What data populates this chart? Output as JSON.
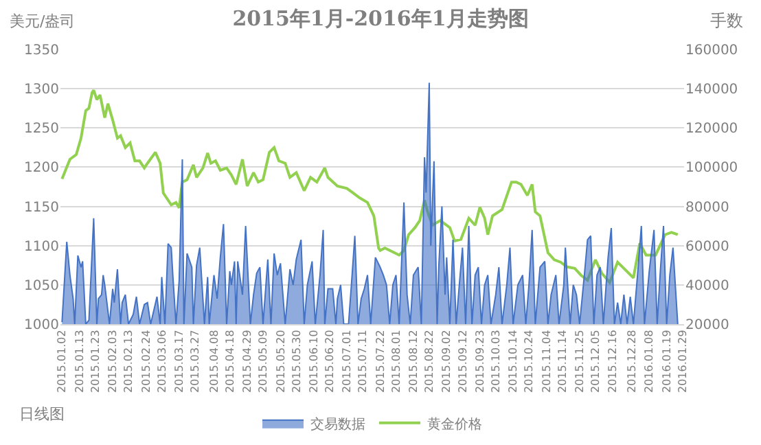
{
  "chart_data": {
    "type": "line",
    "title": "2015年1月-2016年1月走势图",
    "ylabel": "美元/盎司",
    "y2label": "手数",
    "annotations": [
      "日线图"
    ],
    "xlim": [
      "2015-01-01",
      "2016-01-30"
    ],
    "xticks": [
      {
        "value": "2015-01-02",
        "label": "2015.01.02"
      },
      {
        "value": "2015-01-13",
        "label": "2015.01.13"
      },
      {
        "value": "2015-01-23",
        "label": "2015.01.23"
      },
      {
        "value": "2015-02-03",
        "label": "2015.02.03"
      },
      {
        "value": "2015-02-13",
        "label": "2015.02.13"
      },
      {
        "value": "2015-02-24",
        "label": "2015.02.24"
      },
      {
        "value": "2015-03-06",
        "label": "2015.03.06"
      },
      {
        "value": "2015-03-17",
        "label": "2015.03.17"
      },
      {
        "value": "2015-03-27",
        "label": "2015.03.27"
      },
      {
        "value": "2015-04-08",
        "label": "2015.04.08"
      },
      {
        "value": "2015-04-18",
        "label": "2015.04.18"
      },
      {
        "value": "2015-04-29",
        "label": "2015.04.29"
      },
      {
        "value": "2015-05-09",
        "label": "2015.05.09"
      },
      {
        "value": "2015-05-20",
        "label": "2015.05.20"
      },
      {
        "value": "2015-05-30",
        "label": "2015.05.30"
      },
      {
        "value": "2015-06-10",
        "label": "2015.06.10"
      },
      {
        "value": "2015-06-20",
        "label": "2015.06.20"
      },
      {
        "value": "2015-07-01",
        "label": "2015.07.01"
      },
      {
        "value": "2015-07-11",
        "label": "2015.07.11"
      },
      {
        "value": "2015-07-22",
        "label": "2015.07.22"
      },
      {
        "value": "2015-08-01",
        "label": "2015.08.01"
      },
      {
        "value": "2015-08-12",
        "label": "2015.08.12"
      },
      {
        "value": "2015-08-22",
        "label": "2015.08.22"
      },
      {
        "value": "2015-09-02",
        "label": "2015.09.02"
      },
      {
        "value": "2015-09-12",
        "label": "2015.09.12"
      },
      {
        "value": "2015-09-23",
        "label": "2015.09.23"
      },
      {
        "value": "2015-10-03",
        "label": "2015.10.03"
      },
      {
        "value": "2015-10-14",
        "label": "2015.10.14"
      },
      {
        "value": "2015-10-24",
        "label": "2015.10.24"
      },
      {
        "value": "2015-11-04",
        "label": "2015.11.04"
      },
      {
        "value": "2015-11-14",
        "label": "2015.11.14"
      },
      {
        "value": "2015-11-25",
        "label": "2015.11.25"
      },
      {
        "value": "2015-12-05",
        "label": "2015.12.05"
      },
      {
        "value": "2015-12-16",
        "label": "2015.12.16"
      },
      {
        "value": "2015-12-28",
        "label": "2015.12.28"
      },
      {
        "value": "2016-01-08",
        "label": "2016.01.08"
      },
      {
        "value": "2016-01-19",
        "label": "2016.01.19"
      },
      {
        "value": "2016-01-29",
        "label": "2016.01.29"
      }
    ],
    "ylim": [
      1000,
      1350
    ],
    "yticks": [
      1000,
      1050,
      1100,
      1150,
      1200,
      1250,
      1300,
      1350
    ],
    "y2lim": [
      20000,
      160000
    ],
    "y2ticks": [
      20000,
      40000,
      60000,
      80000,
      100000,
      120000,
      140000,
      160000
    ],
    "grid": "y",
    "legend": "bottom",
    "series": [
      {
        "name": "交易数据",
        "type": "area",
        "axis": "y2",
        "color": "#4472c4",
        "x": [
          "2015-01-02",
          "2015-01-05",
          "2015-01-07",
          "2015-01-09",
          "2015-01-10",
          "2015-01-12",
          "2015-01-14",
          "2015-01-15",
          "2015-01-17",
          "2015-01-19",
          "2015-01-22",
          "2015-01-24",
          "2015-01-25",
          "2015-01-27",
          "2015-01-28",
          "2015-01-29",
          "2015-02-01",
          "2015-02-03",
          "2015-02-04",
          "2015-02-06",
          "2015-02-08",
          "2015-02-09",
          "2015-02-11",
          "2015-02-13",
          "2015-02-16",
          "2015-02-18",
          "2015-02-20",
          "2015-02-23",
          "2015-02-25",
          "2015-02-27",
          "2015-03-03",
          "2015-03-05",
          "2015-03-06",
          "2015-03-08",
          "2015-03-10",
          "2015-03-12",
          "2015-03-13",
          "2015-03-15",
          "2015-03-17",
          "2015-03-19",
          "2015-03-20",
          "2015-03-22",
          "2015-03-25",
          "2015-03-26",
          "2015-03-28",
          "2015-03-30",
          "2015-04-02",
          "2015-04-04",
          "2015-04-05",
          "2015-04-08",
          "2015-04-10",
          "2015-04-12",
          "2015-04-14",
          "2015-04-16",
          "2015-04-18",
          "2015-04-19",
          "2015-04-21",
          "2015-04-22",
          "2015-04-23",
          "2015-04-26",
          "2015-04-28",
          "2015-05-01",
          "2015-05-03",
          "2015-05-05",
          "2015-05-07",
          "2015-05-09",
          "2015-05-12",
          "2015-05-14",
          "2015-05-16",
          "2015-05-18",
          "2015-05-20",
          "2015-05-23",
          "2015-05-26",
          "2015-05-28",
          "2015-05-30",
          "2015-06-02",
          "2015-06-04",
          "2015-06-06",
          "2015-06-09",
          "2015-06-11",
          "2015-06-14",
          "2015-06-16",
          "2015-06-17",
          "2015-06-19",
          "2015-06-22",
          "2015-06-24",
          "2015-06-25",
          "2015-06-27",
          "2015-06-29",
          "2015-07-02",
          "2015-07-04",
          "2015-07-06",
          "2015-07-08",
          "2015-07-10",
          "2015-07-12",
          "2015-07-14",
          "2015-07-16",
          "2015-07-19",
          "2015-07-22",
          "2015-07-24",
          "2015-07-26",
          "2015-07-28",
          "2015-07-30",
          "2015-08-01",
          "2015-08-03",
          "2015-08-06",
          "2015-08-08",
          "2015-08-10",
          "2015-08-12",
          "2015-08-15",
          "2015-08-17",
          "2015-08-19",
          "2015-08-20",
          "2015-08-22",
          "2015-08-23",
          "2015-08-25",
          "2015-08-27",
          "2015-08-28",
          "2015-08-30",
          "2015-09-01",
          "2015-09-02",
          "2015-09-04",
          "2015-09-06",
          "2015-09-08",
          "2015-09-10",
          "2015-09-12",
          "2015-09-14",
          "2015-09-16",
          "2015-09-18",
          "2015-09-20",
          "2015-09-22",
          "2015-09-24",
          "2015-09-26",
          "2015-09-28",
          "2015-09-30",
          "2015-10-03",
          "2015-10-05",
          "2015-10-07",
          "2015-10-10",
          "2015-10-12",
          "2015-10-14",
          "2015-10-17",
          "2015-10-20",
          "2015-10-22",
          "2015-10-24",
          "2015-10-26",
          "2015-10-28",
          "2015-10-31",
          "2015-11-03",
          "2015-11-05",
          "2015-11-07",
          "2015-11-10",
          "2015-11-12",
          "2015-11-15",
          "2015-11-16",
          "2015-11-19",
          "2015-11-21",
          "2015-11-23",
          "2015-11-25",
          "2015-11-28",
          "2015-11-30",
          "2015-12-02",
          "2015-12-04",
          "2015-12-06",
          "2015-12-08",
          "2015-12-10",
          "2015-12-13",
          "2015-12-15",
          "2015-12-17",
          "2015-12-19",
          "2015-12-21",
          "2015-12-23",
          "2015-12-25",
          "2015-12-27",
          "2015-12-29",
          "2016-01-01",
          "2016-01-03",
          "2016-01-05",
          "2016-01-08",
          "2016-01-11",
          "2016-01-13",
          "2016-01-15",
          "2016-01-17",
          "2016-01-19",
          "2016-01-21",
          "2016-01-23",
          "2016-01-26"
        ],
        "values": [
          21000,
          62000,
          45000,
          33000,
          20000,
          55000,
          49000,
          52000,
          20000,
          22000,
          74000,
          20000,
          33000,
          35000,
          45000,
          40000,
          20000,
          38000,
          31000,
          48000,
          20000,
          31000,
          35000,
          20000,
          25000,
          34000,
          20000,
          30000,
          31000,
          20000,
          34000,
          20000,
          44000,
          20000,
          61000,
          59000,
          45000,
          20000,
          42000,
          104000,
          20000,
          56000,
          49000,
          20000,
          50000,
          59000,
          20000,
          44000,
          20000,
          45000,
          33000,
          54000,
          71000,
          20000,
          47000,
          40000,
          52000,
          20000,
          52000,
          35000,
          70000,
          20000,
          35000,
          46000,
          49000,
          20000,
          53000,
          20000,
          56000,
          45000,
          51000,
          20000,
          48000,
          40000,
          53000,
          63000,
          20000,
          40000,
          52000,
          20000,
          45000,
          68000,
          20000,
          38000,
          38000,
          20000,
          33000,
          40000,
          20000,
          20000,
          42000,
          65000,
          20000,
          33000,
          38000,
          45000,
          20000,
          54000,
          49000,
          45000,
          40000,
          20000,
          40000,
          45000,
          20000,
          82000,
          35000,
          20000,
          45000,
          49000,
          20000,
          105000,
          87000,
          143000,
          60000,
          103000,
          20000,
          49000,
          80000,
          35000,
          54000,
          20000,
          63000,
          20000,
          40000,
          59000,
          20000,
          70000,
          20000,
          45000,
          49000,
          20000,
          40000,
          45000,
          20000,
          35000,
          49000,
          20000,
          40000,
          59000,
          20000,
          40000,
          45000,
          20000,
          40000,
          68000,
          20000,
          49000,
          52000,
          20000,
          35000,
          45000,
          20000,
          40000,
          59000,
          20000,
          40000,
          35000,
          20000,
          45000,
          63000,
          65000,
          20000,
          45000,
          49000,
          20000,
          54000,
          69000,
          20000,
          31000,
          20000,
          35000,
          20000,
          34000,
          20000,
          49000,
          70000,
          20000,
          47000,
          68000,
          20000,
          47000,
          70000,
          20000,
          45000,
          59000,
          20000
        ]
      },
      {
        "name": "黄金价格",
        "type": "line",
        "color": "#92d050",
        "x": [
          "2015-01-02",
          "2015-01-07",
          "2015-01-11",
          "2015-01-14",
          "2015-01-17",
          "2015-01-19",
          "2015-01-21",
          "2015-01-22",
          "2015-01-24",
          "2015-01-26",
          "2015-01-29",
          "2015-01-31",
          "2015-02-03",
          "2015-02-06",
          "2015-02-08",
          "2015-02-11",
          "2015-02-14",
          "2015-02-17",
          "2015-02-20",
          "2015-02-23",
          "2015-02-25",
          "2015-03-02",
          "2015-03-05",
          "2015-03-07",
          "2015-03-12",
          "2015-03-15",
          "2015-03-17",
          "2015-03-19",
          "2015-03-22",
          "2015-03-26",
          "2015-03-28",
          "2015-04-01",
          "2015-04-04",
          "2015-04-06",
          "2015-04-09",
          "2015-04-12",
          "2015-04-16",
          "2015-04-19",
          "2015-04-22",
          "2015-04-26",
          "2015-04-29",
          "2015-05-03",
          "2015-05-06",
          "2015-05-09",
          "2015-05-13",
          "2015-05-16",
          "2015-05-19",
          "2015-05-23",
          "2015-05-26",
          "2015-05-30",
          "2015-06-04",
          "2015-06-08",
          "2015-06-12",
          "2015-06-17",
          "2015-06-19",
          "2015-06-25",
          "2015-07-01",
          "2015-07-05",
          "2015-07-09",
          "2015-07-14",
          "2015-07-18",
          "2015-07-21",
          "2015-07-22",
          "2015-07-25",
          "2015-07-31",
          "2015-08-03",
          "2015-08-06",
          "2015-08-09",
          "2015-08-13",
          "2015-08-16",
          "2015-08-19",
          "2015-08-21",
          "2015-08-24",
          "2015-08-29",
          "2015-09-04",
          "2015-09-07",
          "2015-09-11",
          "2015-09-16",
          "2015-09-20",
          "2015-09-23",
          "2015-09-26",
          "2015-09-28",
          "2015-10-01",
          "2015-10-07",
          "2015-10-13",
          "2015-10-16",
          "2015-10-19",
          "2015-10-23",
          "2015-10-26",
          "2015-10-28",
          "2015-10-31",
          "2015-11-05",
          "2015-11-09",
          "2015-11-13",
          "2015-11-17",
          "2015-11-22",
          "2015-11-26",
          "2015-11-30",
          "2015-12-05",
          "2015-12-09",
          "2015-12-14",
          "2015-12-19",
          "2015-12-23",
          "2015-12-29",
          "2016-01-02",
          "2016-01-06",
          "2016-01-12",
          "2016-01-18",
          "2016-01-22",
          "2016-01-26"
        ],
        "values": [
          1185,
          1210,
          1216,
          1237,
          1272,
          1275,
          1295,
          1298,
          1286,
          1292,
          1263,
          1281,
          1260,
          1237,
          1240,
          1225,
          1231,
          1208,
          1208,
          1199,
          1205,
          1219,
          1205,
          1167,
          1152,
          1155,
          1148,
          1181,
          1184,
          1203,
          1187,
          1199,
          1218,
          1205,
          1208,
          1196,
          1199,
          1190,
          1178,
          1210,
          1176,
          1193,
          1181,
          1184,
          1219,
          1225,
          1208,
          1205,
          1187,
          1193,
          1170,
          1187,
          1181,
          1199,
          1187,
          1176,
          1173,
          1167,
          1161,
          1155,
          1138,
          1097,
          1094,
          1097,
          1091,
          1088,
          1094,
          1114,
          1123,
          1132,
          1158,
          1143,
          1126,
          1132,
          1123,
          1106,
          1108,
          1135,
          1126,
          1149,
          1135,
          1114,
          1138,
          1146,
          1181,
          1181,
          1178,
          1164,
          1178,
          1143,
          1138,
          1091,
          1082,
          1079,
          1073,
          1071,
          1062,
          1056,
          1082,
          1065,
          1053,
          1079,
          1071,
          1059,
          1103,
          1088,
          1088,
          1114,
          1117,
          1114
        ]
      }
    ]
  }
}
